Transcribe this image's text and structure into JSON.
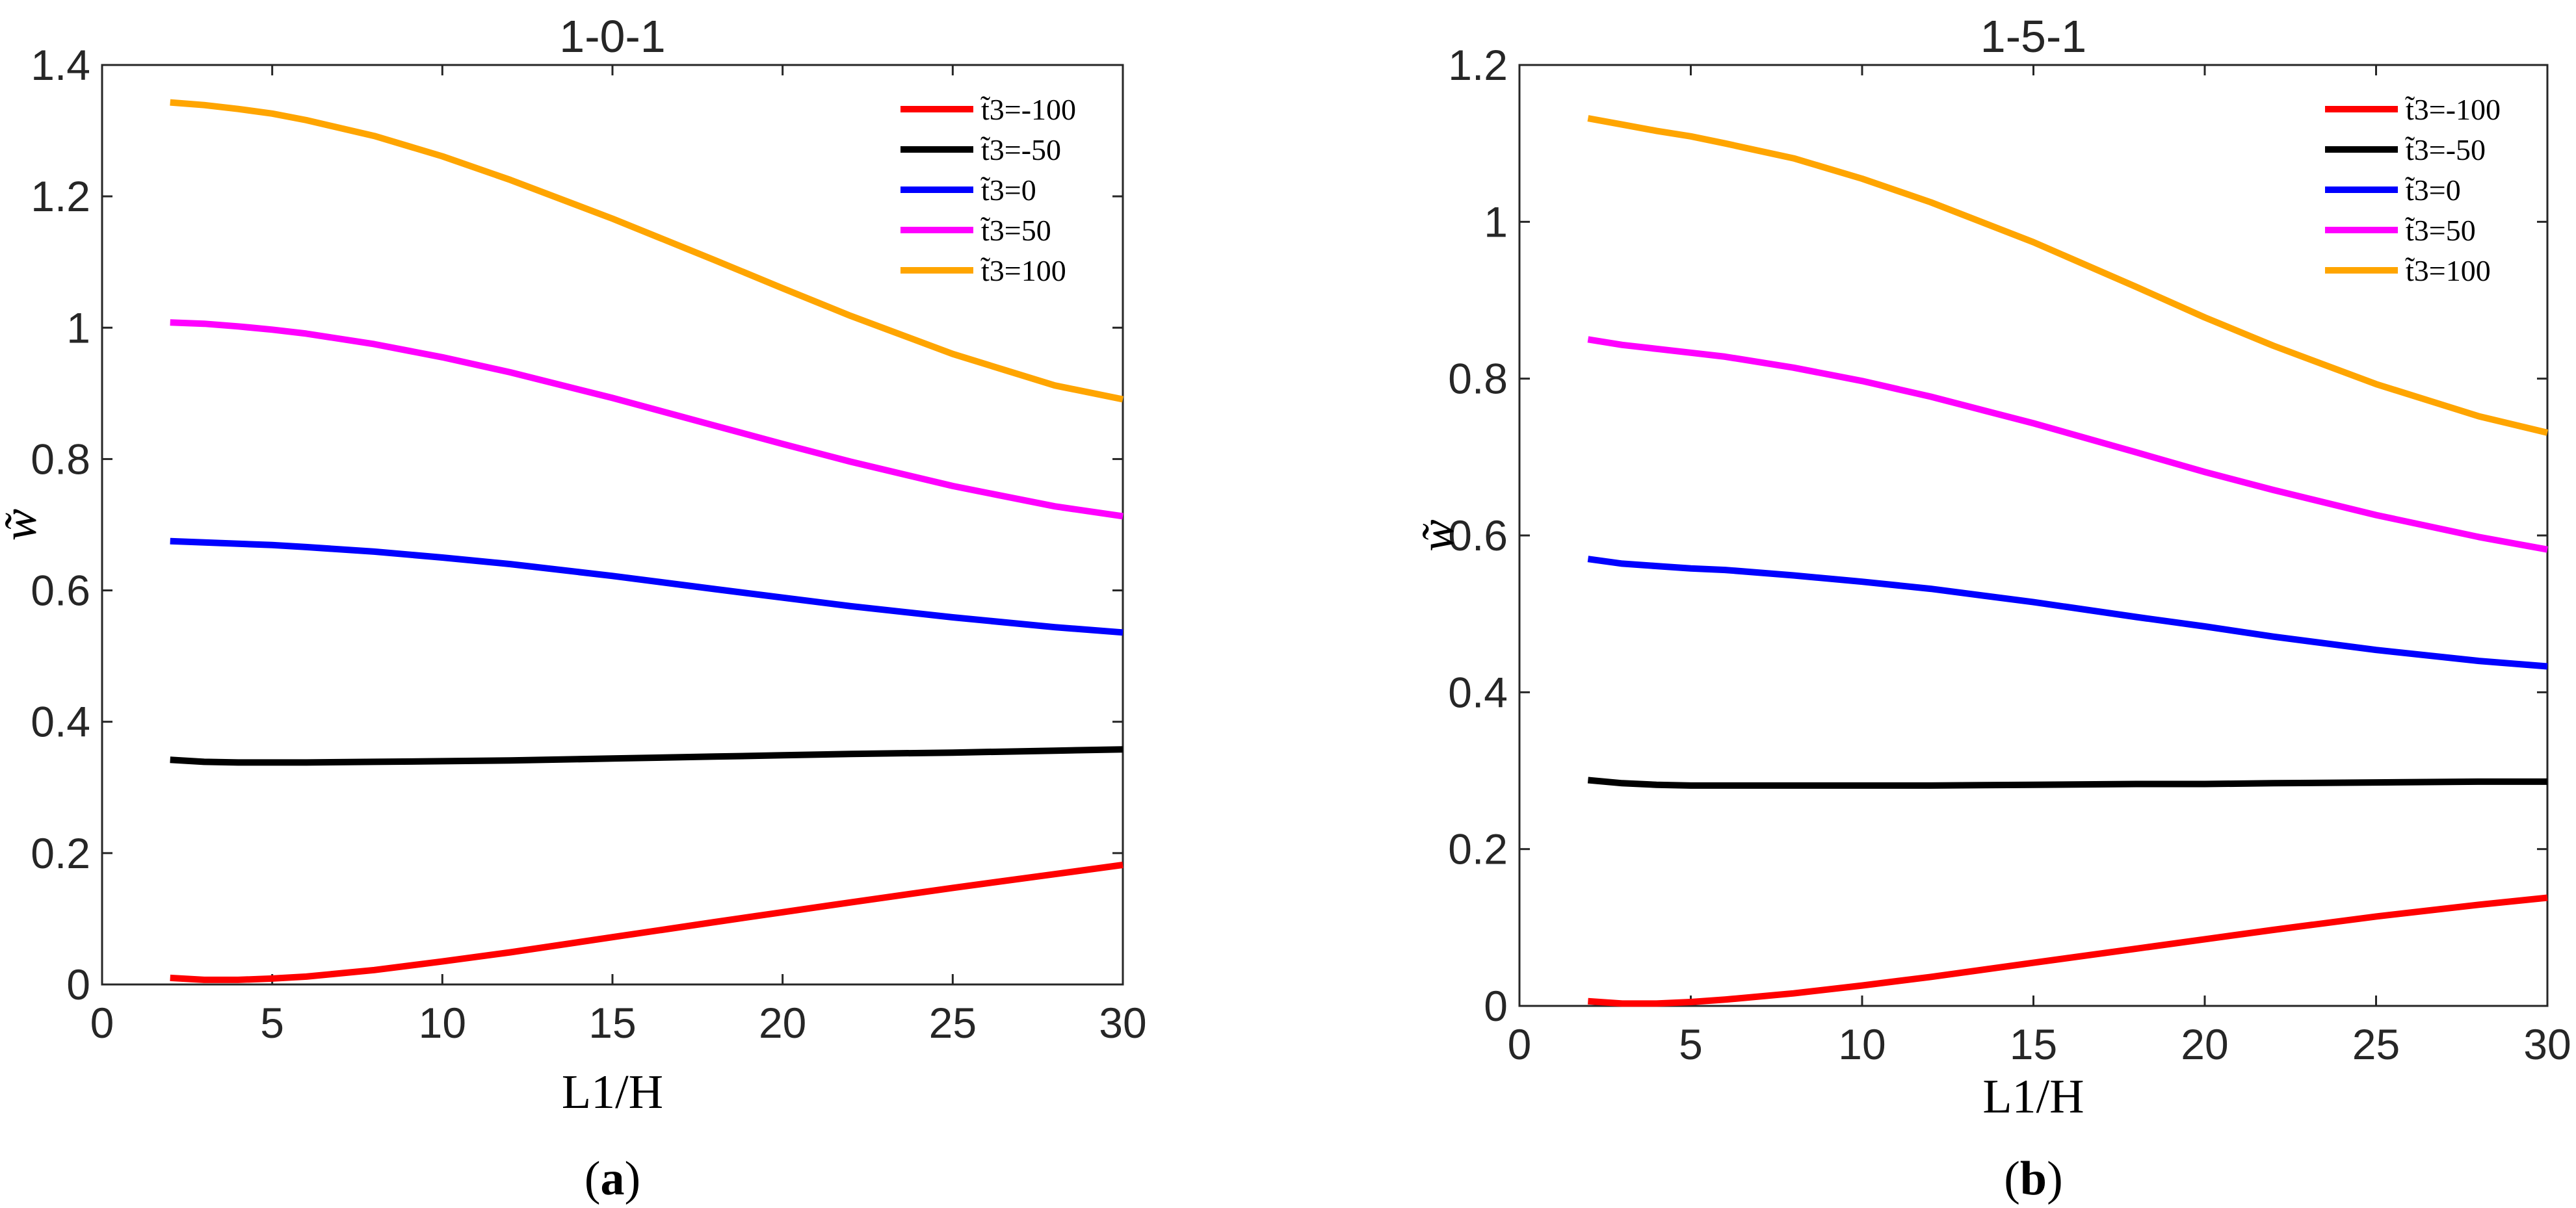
{
  "chart_data": [
    {
      "type": "line",
      "title": "1-0-1",
      "xlabel": "L1/H",
      "ylabel": "w̃",
      "caption_letter": "a",
      "xlim": [
        0,
        30
      ],
      "ylim": [
        0,
        1.4
      ],
      "xticks": [
        0,
        5,
        10,
        15,
        20,
        25,
        30
      ],
      "yticks": [
        0,
        0.2,
        0.4,
        0.6,
        0.8,
        1.0,
        1.2,
        1.4
      ],
      "xtick_labels": [
        "0",
        "5",
        "10",
        "15",
        "20",
        "25",
        "30"
      ],
      "ytick_labels": [
        "0",
        "0.2",
        "0.4",
        "0.6",
        "0.8",
        "1",
        "1.2",
        "1.4"
      ],
      "legend_position": "top-right",
      "x": [
        2,
        3,
        4,
        5,
        6,
        8,
        10,
        12,
        15,
        18,
        20,
        22,
        25,
        28,
        30
      ],
      "series": [
        {
          "name": "t̃3=-100",
          "color": "#ff0000",
          "values": [
            0.01,
            0.007,
            0.007,
            0.009,
            0.012,
            0.022,
            0.035,
            0.049,
            0.072,
            0.095,
            0.11,
            0.125,
            0.147,
            0.168,
            0.182
          ]
        },
        {
          "name": "t̃3=-50",
          "color": "#000000",
          "values": [
            0.342,
            0.339,
            0.338,
            0.338,
            0.338,
            0.339,
            0.34,
            0.341,
            0.344,
            0.347,
            0.349,
            0.351,
            0.353,
            0.356,
            0.358
          ]
        },
        {
          "name": "t̃3=0",
          "color": "#0000ff",
          "values": [
            0.675,
            0.673,
            0.671,
            0.669,
            0.666,
            0.659,
            0.65,
            0.64,
            0.622,
            0.602,
            0.589,
            0.576,
            0.559,
            0.544,
            0.536
          ]
        },
        {
          "name": "t̃3=50",
          "color": "#ff00ff",
          "values": [
            1.008,
            1.006,
            1.002,
            0.997,
            0.991,
            0.975,
            0.955,
            0.932,
            0.893,
            0.851,
            0.823,
            0.796,
            0.759,
            0.728,
            0.713
          ]
        },
        {
          "name": "t̃3=100",
          "color": "#ffa500",
          "values": [
            1.343,
            1.339,
            1.333,
            1.326,
            1.316,
            1.292,
            1.261,
            1.225,
            1.166,
            1.103,
            1.06,
            1.018,
            0.96,
            0.912,
            0.891
          ]
        }
      ]
    },
    {
      "type": "line",
      "title": "1-5-1",
      "xlabel": "L1/H",
      "ylabel": "w̃",
      "caption_letter": "b",
      "xlim": [
        0,
        30
      ],
      "ylim": [
        0,
        1.2
      ],
      "xticks": [
        0,
        5,
        10,
        15,
        20,
        25,
        30
      ],
      "yticks": [
        0,
        0.2,
        0.4,
        0.6,
        0.8,
        1.0,
        1.2
      ],
      "xtick_labels": [
        "0",
        "5",
        "10",
        "15",
        "20",
        "25",
        "30"
      ],
      "ytick_labels": [
        "0",
        "0.2",
        "0.4",
        "0.6",
        "0.8",
        "1",
        "1.2"
      ],
      "legend_position": "top-right",
      "x": [
        2,
        3,
        4,
        5,
        6,
        8,
        10,
        12,
        15,
        18,
        20,
        22,
        25,
        28,
        30
      ],
      "series": [
        {
          "name": "t̃3=-100",
          "color": "#ff0000",
          "values": [
            0.006,
            0.003,
            0.003,
            0.005,
            0.008,
            0.016,
            0.026,
            0.037,
            0.055,
            0.073,
            0.085,
            0.097,
            0.114,
            0.129,
            0.138
          ]
        },
        {
          "name": "t̃3=-50",
          "color": "#000000",
          "values": [
            0.288,
            0.284,
            0.282,
            0.281,
            0.281,
            0.281,
            0.281,
            0.281,
            0.282,
            0.283,
            0.283,
            0.284,
            0.285,
            0.286,
            0.286
          ]
        },
        {
          "name": "t̃3=0",
          "color": "#0000ff",
          "values": [
            0.57,
            0.564,
            0.561,
            0.558,
            0.556,
            0.549,
            0.541,
            0.532,
            0.515,
            0.496,
            0.484,
            0.471,
            0.454,
            0.44,
            0.433
          ]
        },
        {
          "name": "t̃3=50",
          "color": "#ff00ff",
          "values": [
            0.85,
            0.843,
            0.838,
            0.833,
            0.828,
            0.814,
            0.797,
            0.777,
            0.743,
            0.706,
            0.681,
            0.658,
            0.626,
            0.598,
            0.582
          ]
        },
        {
          "name": "t̃3=100",
          "color": "#ffa500",
          "values": [
            1.132,
            1.124,
            1.116,
            1.109,
            1.1,
            1.081,
            1.055,
            1.025,
            0.974,
            0.917,
            0.878,
            0.842,
            0.793,
            0.752,
            0.731
          ]
        }
      ]
    }
  ]
}
